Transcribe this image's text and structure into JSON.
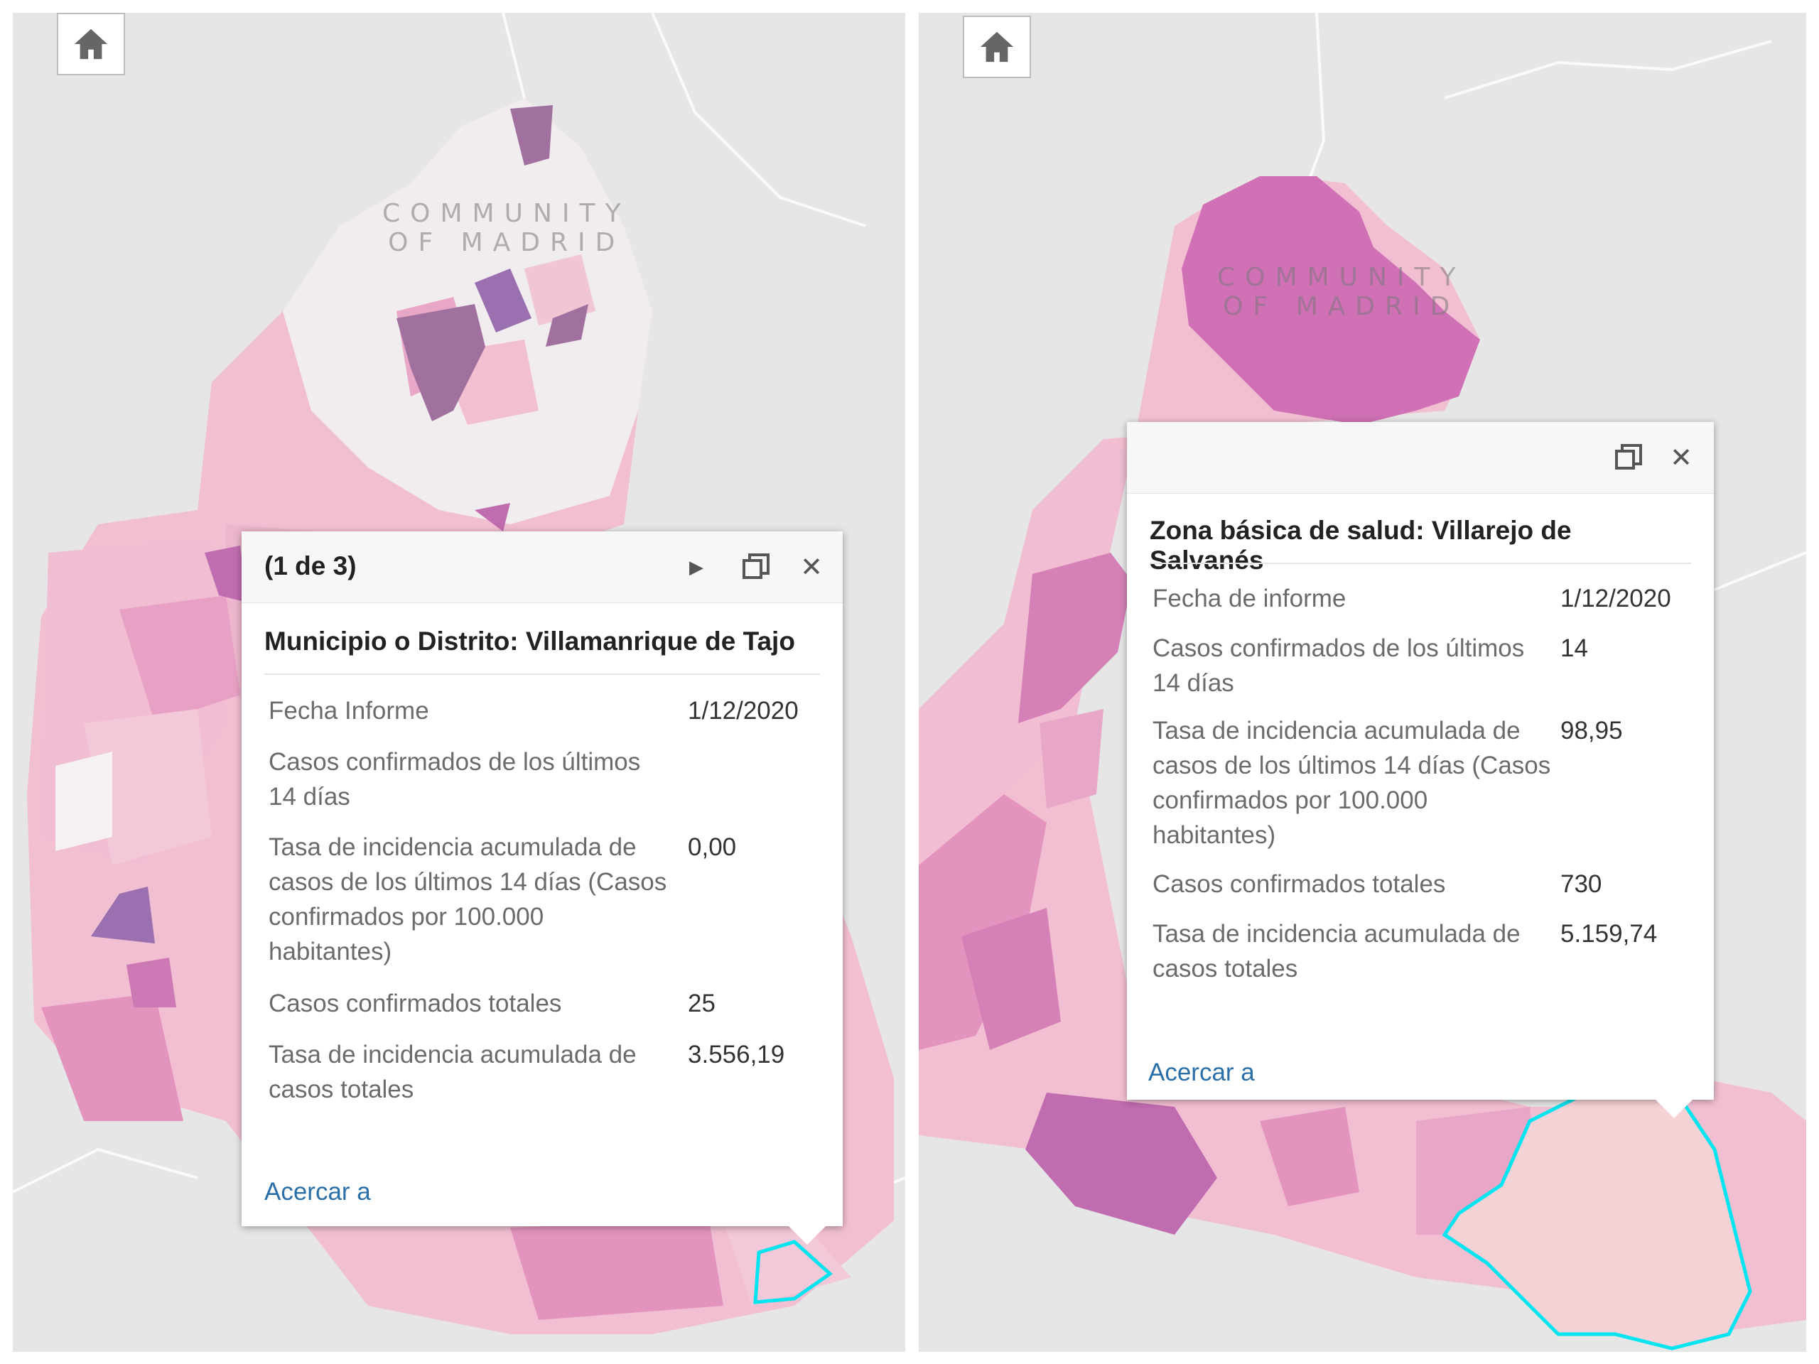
{
  "map_labels": {
    "line1": "COMMUNITY",
    "line2": "OF MADRID"
  },
  "icons": {
    "home": "home-icon",
    "next": "play-icon",
    "maximize": "maximize-icon",
    "close": "close-icon"
  },
  "colors": {
    "base": "#e6e6e6",
    "light_pink": "#f2bfd2",
    "pink": "#e89bc1",
    "magenta": "#d070b5",
    "purple": "#a0709f",
    "highlight": "#00e5f0",
    "link": "#2a6fa8"
  },
  "left_popup": {
    "counter": "(1 de 3)",
    "title": "Municipio o Distrito: Villamanrique de Tajo",
    "rows": [
      {
        "label_lines": [
          "Fecha Informe"
        ],
        "value": "1/12/2020"
      },
      {
        "label_lines": [
          "Casos confirmados de los últimos",
          "14 días"
        ],
        "value": ""
      },
      {
        "label_lines": [
          "Tasa de incidencia acumulada de",
          "casos de los últimos 14 días (Casos",
          "confirmados por 100.000",
          "habitantes)"
        ],
        "value": "0,00"
      },
      {
        "label_lines": [
          "Casos confirmados totales"
        ],
        "value": "25"
      },
      {
        "label_lines": [
          "Tasa de incidencia acumulada de",
          "casos totales"
        ],
        "value": "3.556,19"
      }
    ],
    "zoom_link": "Acercar a"
  },
  "right_popup": {
    "title": "Zona básica de salud: Villarejo de Salvanés",
    "rows": [
      {
        "label_lines": [
          "Fecha de informe"
        ],
        "value": "1/12/2020"
      },
      {
        "label_lines": [
          "Casos confirmados de los últimos",
          "14 días"
        ],
        "value": "14"
      },
      {
        "label_lines": [
          "Tasa de incidencia acumulada de",
          "casos de los últimos 14 días (Casos",
          "confirmados por 100.000",
          "habitantes)"
        ],
        "value": "98,95"
      },
      {
        "label_lines": [
          "Casos confirmados totales"
        ],
        "value": "730"
      },
      {
        "label_lines": [
          "Tasa de incidencia acumulada de",
          "casos totales"
        ],
        "value": "5.159,74"
      }
    ],
    "zoom_link": "Acercar a"
  }
}
